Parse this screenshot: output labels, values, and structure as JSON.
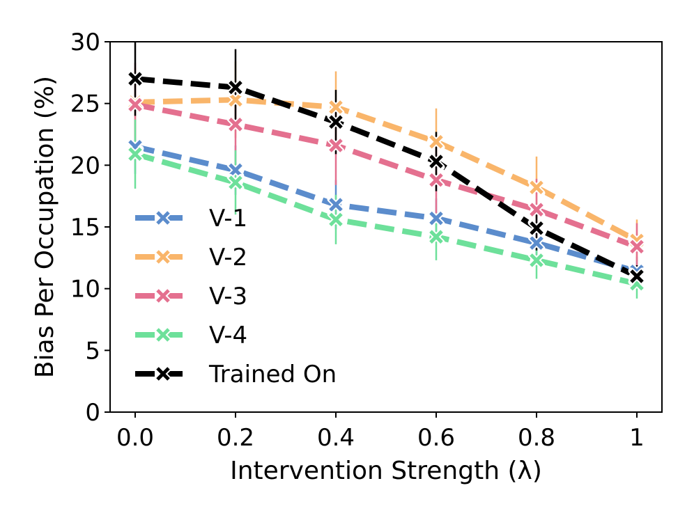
{
  "chart_data": {
    "type": "line",
    "title": "",
    "xlabel": "Intervention Strength (λ)",
    "ylabel": "Bias Per Occupation (%)",
    "x": [
      0.0,
      0.2,
      0.4,
      0.6,
      0.8,
      1.0
    ],
    "xticklabels": [
      "0.0",
      "0.2",
      "0.4",
      "0.6",
      "0.8",
      "1"
    ],
    "yticks": [
      0,
      5,
      10,
      15,
      20,
      25,
      30
    ],
    "yticklabels": [
      "0",
      "5",
      "10",
      "15",
      "20",
      "25",
      "30"
    ],
    "xlim": [
      -0.05,
      1.05
    ],
    "ylim": [
      0,
      30
    ],
    "grid": false,
    "legend_position": "center-left",
    "series": [
      {
        "name": "V-1",
        "color": "#5b8ccc",
        "values": [
          21.5,
          19.6,
          16.8,
          15.7,
          13.7,
          11.4
        ],
        "err": [
          2.2,
          2.0,
          2.0,
          1.6,
          1.6,
          1.2
        ]
      },
      {
        "name": "V-2",
        "color": "#f9b56a",
        "values": [
          25.1,
          25.3,
          24.7,
          21.9,
          18.2,
          13.9
        ],
        "err": [
          2.8,
          3.1,
          2.9,
          2.7,
          2.5,
          1.7
        ]
      },
      {
        "name": "V-3",
        "color": "#e4708f",
        "values": [
          24.9,
          23.3,
          21.6,
          18.8,
          16.4,
          13.4
        ],
        "err": [
          3.4,
          3.4,
          3.2,
          3.1,
          2.5,
          1.9
        ]
      },
      {
        "name": "V-4",
        "color": "#6de09a",
        "values": [
          20.9,
          18.6,
          15.6,
          14.2,
          12.3,
          10.4
        ],
        "err": [
          2.8,
          2.6,
          2.0,
          1.9,
          1.5,
          1.2
        ]
      },
      {
        "name": "Trained On",
        "color": "#000000",
        "values": [
          27.0,
          26.3,
          23.5,
          20.3,
          14.9,
          11.0
        ],
        "err": [
          3.0,
          3.1,
          2.6,
          2.4,
          1.8,
          0.9
        ]
      }
    ]
  }
}
